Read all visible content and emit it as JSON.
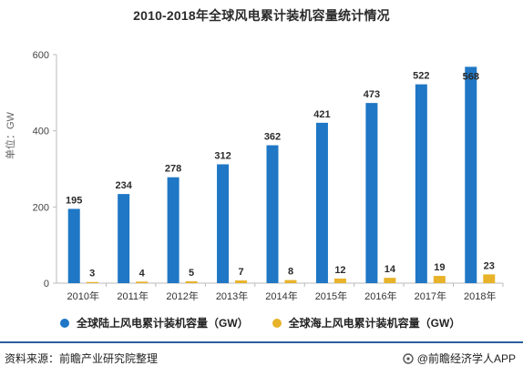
{
  "chart_data": {
    "type": "bar",
    "title": "2010-2018年全球风电累计装机容量统计情况",
    "ylabel": "单位：GW",
    "xlabel": "",
    "ylim": [
      0,
      600
    ],
    "yticks": [
      0,
      200,
      400,
      600
    ],
    "categories": [
      "2010年",
      "2011年",
      "2012年",
      "2013年",
      "2014年",
      "2015年",
      "2016年",
      "2017年",
      "2018年"
    ],
    "series": [
      {
        "name": "全球陆上风电累计装机容量（GW）",
        "color": "#1f77c5",
        "values": [
          195,
          234,
          278,
          312,
          362,
          421,
          473,
          522,
          568
        ]
      },
      {
        "name": "全球海上风电累计装机容量（GW）",
        "color": "#e8b32a",
        "values": [
          3,
          4,
          5,
          7,
          8,
          12,
          14,
          19,
          23
        ]
      }
    ],
    "grid": false,
    "legend_position": "bottom"
  },
  "footer": {
    "source": "资料来源：前瞻产业研究院整理",
    "brand": "@前瞻经济学人APP"
  }
}
